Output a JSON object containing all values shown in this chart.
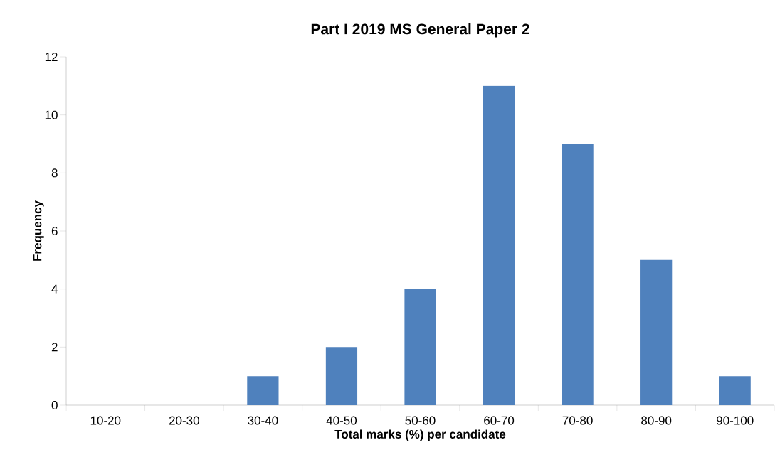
{
  "chart_data": {
    "type": "bar",
    "title": "Part I 2019 MS General Paper 2",
    "xlabel": "Total marks (%) per candidate",
    "ylabel": "Frequency",
    "categories": [
      "10-20",
      "20-30",
      "30-40",
      "40-50",
      "50-60",
      "60-70",
      "70-80",
      "80-90",
      "90-100"
    ],
    "values": [
      0,
      0,
      1,
      2,
      4,
      11,
      9,
      5,
      1
    ],
    "color": "#4f81bd",
    "ylim": [
      0,
      12
    ],
    "yticks": [
      0,
      2,
      4,
      6,
      8,
      10,
      12
    ]
  }
}
